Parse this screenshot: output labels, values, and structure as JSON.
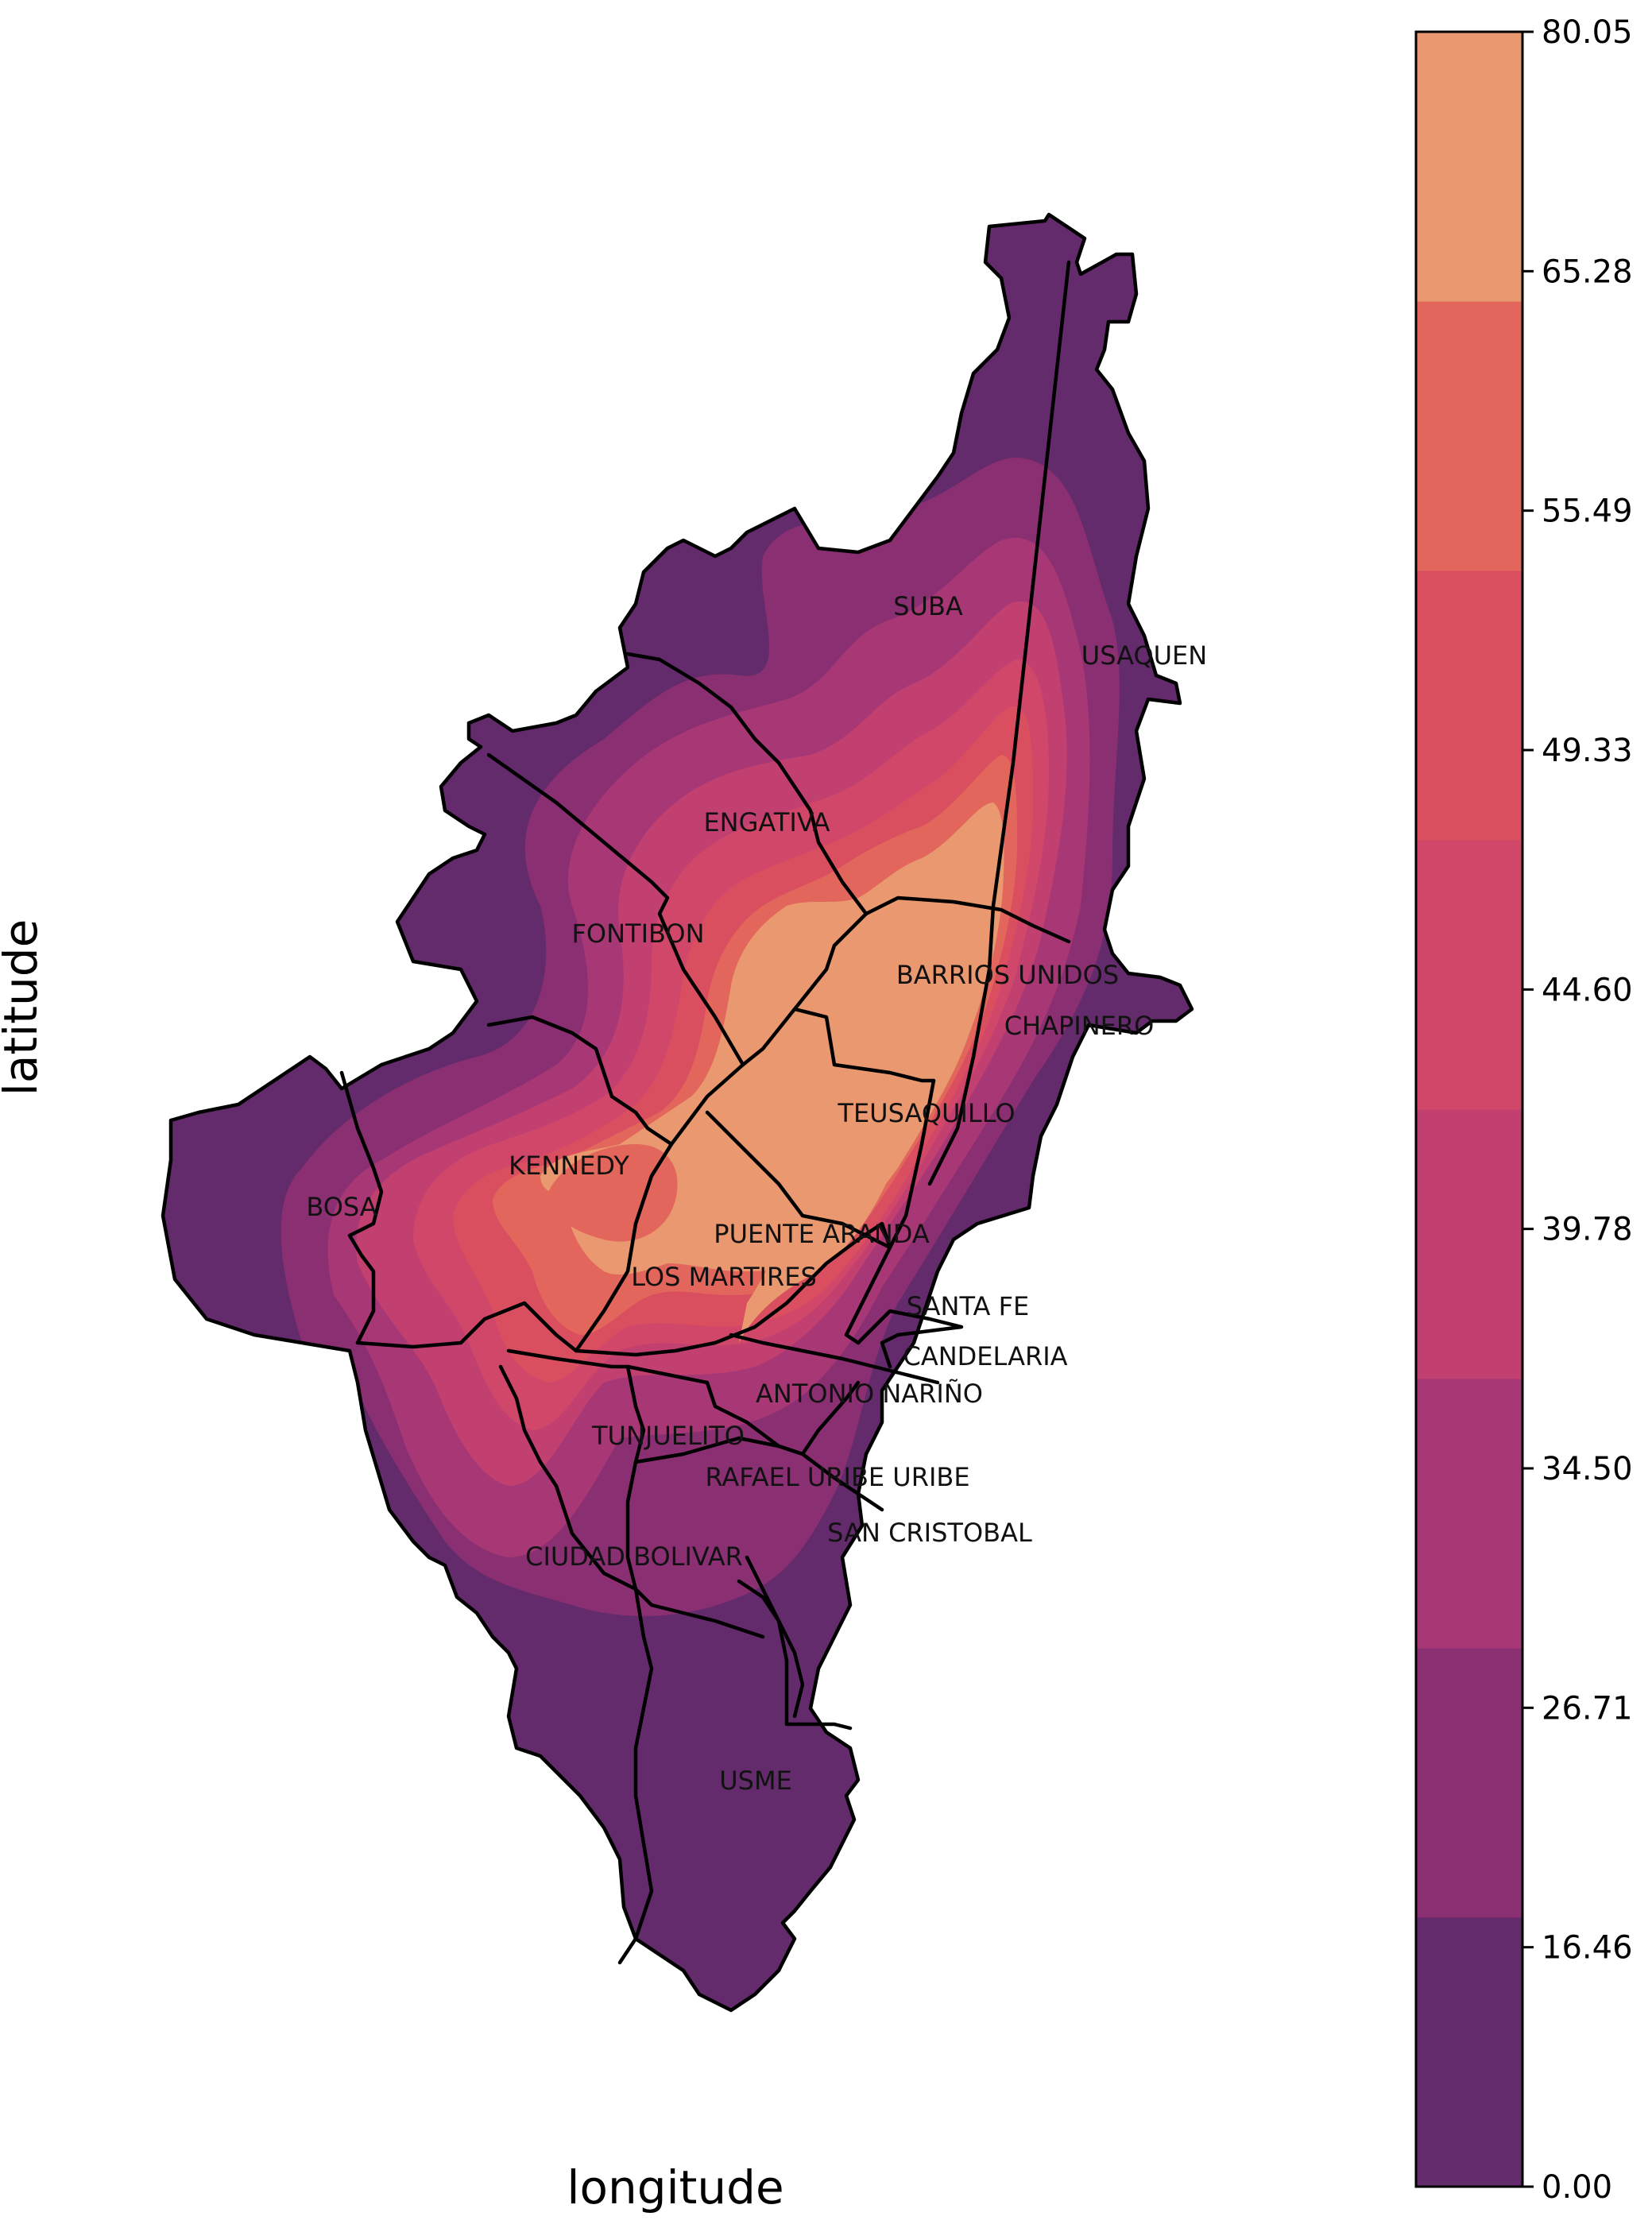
{
  "axes": {
    "xlabel": "longitude",
    "ylabel": "latitude"
  },
  "colorbar": {
    "ticks": [
      "80.05",
      "65.28",
      "55.49",
      "49.33",
      "44.60",
      "39.78",
      "34.50",
      "26.71",
      "16.46",
      "0.00"
    ],
    "levels": [
      0.0,
      16.46,
      26.71,
      34.5,
      39.78,
      44.6,
      49.33,
      55.49,
      65.28,
      80.05
    ],
    "colors": [
      "#632b6b",
      "#892f72",
      "#a73775",
      "#c24070",
      "#d1476a",
      "#d94f5f",
      "#e2665b",
      "#e9986f"
    ]
  },
  "districts": [
    {
      "name": "SUBA"
    },
    {
      "name": "USAQUEN"
    },
    {
      "name": "ENGATIVA"
    },
    {
      "name": "FONTIBON"
    },
    {
      "name": "BARRIOS UNIDOS"
    },
    {
      "name": "CHAPINERO"
    },
    {
      "name": "TEUSAQUILLO"
    },
    {
      "name": "KENNEDY"
    },
    {
      "name": "BOSA"
    },
    {
      "name": "PUENTE ARANDA"
    },
    {
      "name": "LOS MARTIRES"
    },
    {
      "name": "SANTA FE"
    },
    {
      "name": "CANDELARIA"
    },
    {
      "name": "ANTONIO NARIÑO"
    },
    {
      "name": "TUNJUELITO"
    },
    {
      "name": "RAFAEL URIBE URIBE"
    },
    {
      "name": "SAN CRISTOBAL"
    },
    {
      "name": "CIUDAD BOLIVAR"
    },
    {
      "name": "USME"
    }
  ]
}
